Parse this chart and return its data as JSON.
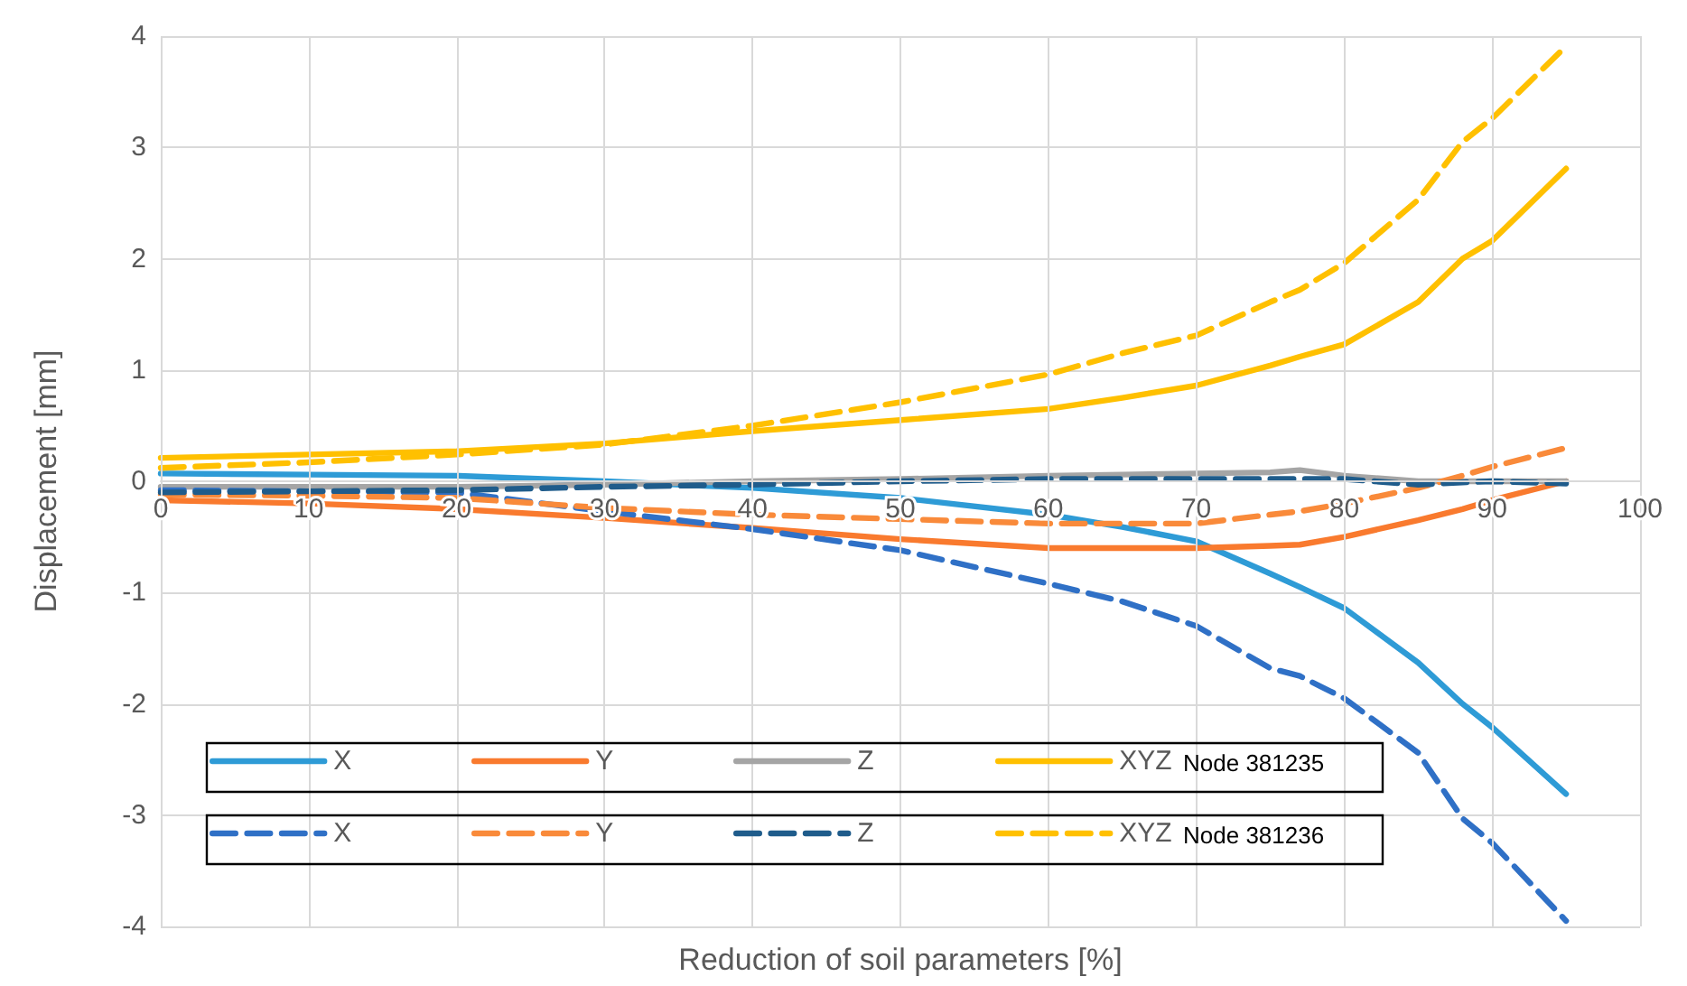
{
  "chart_data": {
    "type": "line",
    "xlabel": "Reduction of soil parameters [%]",
    "ylabel": "Displacement [mm]",
    "xlim": [
      0,
      100
    ],
    "xticks": [
      0,
      10,
      20,
      30,
      40,
      50,
      60,
      70,
      80,
      90,
      100
    ],
    "ylim": [
      -4,
      4
    ],
    "yticks": [
      -4,
      -3,
      -2,
      -1,
      0,
      1,
      2,
      3,
      4
    ],
    "grid": true,
    "legend": "bottom left",
    "marker": "none",
    "annotations": [
      "Node 381235",
      "Node 381236"
    ],
    "x": [
      0,
      10,
      20,
      30,
      40,
      50,
      60,
      65,
      70,
      75,
      77,
      80,
      85,
      88,
      90,
      95
    ],
    "series": [
      {
        "name": "X",
        "color": "#2e9bd6",
        "line_style": "solid",
        "values": [
          0.07,
          0.06,
          0.05,
          0.0,
          -0.06,
          -0.15,
          -0.3,
          -0.41,
          -0.54,
          -0.83,
          -0.95,
          -1.14,
          -1.63,
          -2.0,
          -2.21,
          -2.81
        ]
      },
      {
        "name": "Y",
        "color": "#f97a2e",
        "line_style": "solid",
        "values": [
          -0.17,
          -0.2,
          -0.25,
          -0.33,
          -0.42,
          -0.52,
          -0.6,
          -0.6,
          -0.6,
          -0.58,
          -0.57,
          -0.5,
          -0.35,
          -0.25,
          -0.17,
          0.0
        ]
      },
      {
        "name": "Z",
        "color": "#a5a5a5",
        "line_style": "solid",
        "values": [
          -0.05,
          -0.05,
          -0.05,
          -0.03,
          0.0,
          0.02,
          0.05,
          0.06,
          0.07,
          0.08,
          0.1,
          0.05,
          0.0,
          0.0,
          0.0,
          0.0
        ]
      },
      {
        "name": "XYZ",
        "color": "#ffc000",
        "line_style": "solid",
        "values": [
          0.21,
          0.24,
          0.27,
          0.34,
          0.45,
          0.55,
          0.65,
          0.75,
          0.86,
          1.04,
          1.12,
          1.23,
          1.61,
          2.0,
          2.16,
          2.81
        ]
      },
      {
        "name": "X",
        "color": "#2f70c6",
        "line_style": "dashed",
        "values": [
          -0.08,
          -0.09,
          -0.1,
          -0.27,
          -0.43,
          -0.62,
          -0.92,
          -1.08,
          -1.3,
          -1.68,
          -1.75,
          -1.95,
          -2.44,
          -3.03,
          -3.25,
          -3.95
        ]
      },
      {
        "name": "Y",
        "color": "#f98a3a",
        "line_style": "dashed",
        "values": [
          -0.12,
          -0.13,
          -0.15,
          -0.24,
          -0.3,
          -0.34,
          -0.38,
          -0.38,
          -0.38,
          -0.3,
          -0.27,
          -0.2,
          -0.06,
          0.05,
          0.13,
          0.3
        ]
      },
      {
        "name": "Z",
        "color": "#1f5c8b",
        "line_style": "dashed",
        "values": [
          -0.1,
          -0.09,
          -0.08,
          -0.05,
          -0.03,
          0.0,
          0.02,
          0.02,
          0.02,
          0.02,
          0.02,
          0.02,
          -0.03,
          -0.01,
          0.0,
          -0.02
        ]
      },
      {
        "name": "XYZ",
        "color": "#ffc000",
        "line_style": "dashed",
        "values": [
          0.12,
          0.17,
          0.24,
          0.33,
          0.5,
          0.71,
          0.96,
          1.15,
          1.31,
          1.61,
          1.72,
          1.96,
          2.53,
          3.05,
          3.26,
          3.91
        ]
      }
    ]
  }
}
